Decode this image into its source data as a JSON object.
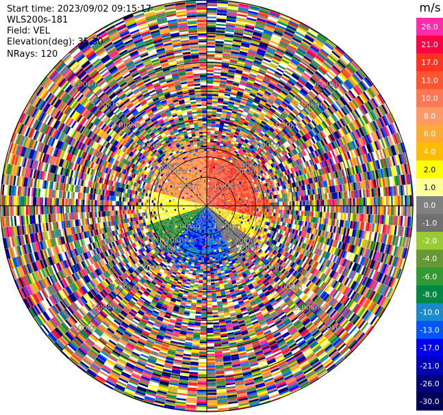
{
  "header": {
    "start_time": "Start time: 2023/09/02 09:15:17",
    "instrument": "WLS200s-181",
    "field": "Field: VEL",
    "elevation": "Elevation(deg): 35.30",
    "nrays": "NRays: 120"
  },
  "chart_data": {
    "type": "heatmap",
    "subtype": "polar-ppi",
    "field": "VEL",
    "nrays": 120,
    "range_rings_km": [
      1.0,
      1.7,
      2.0,
      3.0,
      4.0,
      5.0,
      6.0
    ],
    "ring_labels": [
      "1.00km",
      "1.70km",
      "2.00km",
      "3.00km",
      "4.00km",
      "5.00km",
      "6.00km"
    ],
    "max_range_km": 7.2,
    "colorbar": {
      "unit": "m/s",
      "tick_labels": [
        "26.0",
        "21.0",
        "17.0",
        "13.0",
        "10.0",
        "8.0",
        "6.0",
        "4.0",
        "2.0",
        "1.0",
        "0.0",
        "-1.0",
        "-2.0",
        "-4.0",
        "-6.0",
        "-8.0",
        "-10.0",
        "-13.0",
        "-17.0",
        "-21.0",
        "-26.0",
        "-30.0"
      ],
      "colors": [
        "#ff2ba8",
        "#ff0044",
        "#ff3322",
        "#ff5533",
        "#ff7755",
        "#ff9966",
        "#ffaa33",
        "#ffbb00",
        "#ffff00",
        "#ffff99",
        "#808080",
        "#707070",
        "#99cc33",
        "#669933",
        "#339933",
        "#008844",
        "#1a8acc",
        "#0055ff",
        "#0000ee",
        "#0000bb",
        "#00007a",
        "#00005a"
      ]
    }
  }
}
